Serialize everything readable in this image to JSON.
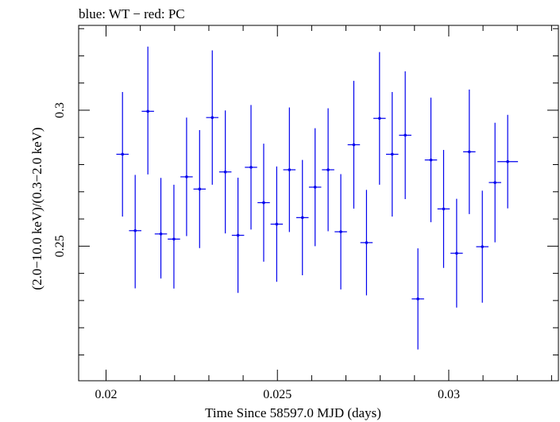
{
  "chart_data": {
    "type": "scatter",
    "title": "blue: WT − red: PC",
    "xlabel": "Time Since 58597.0 MJD (days)",
    "ylabel": "(2.0−10.0 keV)/(0.3−2.0 keV)",
    "xlim": [
      0.0192,
      0.0332
    ],
    "ylim": [
      0.2005,
      0.3312
    ],
    "x_ticks": [
      {
        "value": 0.02,
        "label": "0.02"
      },
      {
        "value": 0.025,
        "label": "0.025"
      },
      {
        "value": 0.03,
        "label": "0.03"
      }
    ],
    "y_ticks": [
      {
        "value": 0.25,
        "label": "0.25"
      },
      {
        "value": 0.3,
        "label": "0.3"
      }
    ],
    "grid": false,
    "series": [
      {
        "name": "WT",
        "color": "#0000ee",
        "points": [
          {
            "x": 0.02048,
            "xerr": 0.00018,
            "y": 0.2838,
            "yerr_lo": 0.0229,
            "yerr_hi": 0.0229
          },
          {
            "x": 0.02085,
            "xerr": 0.00018,
            "y": 0.2557,
            "yerr_lo": 0.0212,
            "yerr_hi": 0.0205
          },
          {
            "x": 0.02122,
            "xerr": 0.00018,
            "y": 0.2996,
            "yerr_lo": 0.0232,
            "yerr_hi": 0.0238
          },
          {
            "x": 0.0216,
            "xerr": 0.00018,
            "y": 0.2545,
            "yerr_lo": 0.0164,
            "yerr_hi": 0.0206
          },
          {
            "x": 0.02198,
            "xerr": 0.00018,
            "y": 0.2526,
            "yerr_lo": 0.0182,
            "yerr_hi": 0.02
          },
          {
            "x": 0.02235,
            "xerr": 0.00018,
            "y": 0.2755,
            "yerr_lo": 0.0218,
            "yerr_hi": 0.0218
          },
          {
            "x": 0.02273,
            "xerr": 0.00018,
            "y": 0.271,
            "yerr_lo": 0.0217,
            "yerr_hi": 0.0217
          },
          {
            "x": 0.0231,
            "xerr": 0.00018,
            "y": 0.2973,
            "yerr_lo": 0.0247,
            "yerr_hi": 0.0247
          },
          {
            "x": 0.02348,
            "xerr": 0.00018,
            "y": 0.2773,
            "yerr_lo": 0.0226,
            "yerr_hi": 0.0226
          },
          {
            "x": 0.02385,
            "xerr": 0.00018,
            "y": 0.254,
            "yerr_lo": 0.0212,
            "yerr_hi": 0.0212
          },
          {
            "x": 0.02423,
            "xerr": 0.00018,
            "y": 0.279,
            "yerr_lo": 0.0229,
            "yerr_hi": 0.0229
          },
          {
            "x": 0.0246,
            "xerr": 0.00018,
            "y": 0.266,
            "yerr_lo": 0.0217,
            "yerr_hi": 0.0217
          },
          {
            "x": 0.02498,
            "xerr": 0.00018,
            "y": 0.2581,
            "yerr_lo": 0.0212,
            "yerr_hi": 0.0212
          },
          {
            "x": 0.02535,
            "xerr": 0.00018,
            "y": 0.2781,
            "yerr_lo": 0.0229,
            "yerr_hi": 0.0229
          },
          {
            "x": 0.02573,
            "xerr": 0.00018,
            "y": 0.2605,
            "yerr_lo": 0.0212,
            "yerr_hi": 0.0212
          },
          {
            "x": 0.0261,
            "xerr": 0.00018,
            "y": 0.2717,
            "yerr_lo": 0.0217,
            "yerr_hi": 0.0217
          },
          {
            "x": 0.02648,
            "xerr": 0.00018,
            "y": 0.2781,
            "yerr_lo": 0.0226,
            "yerr_hi": 0.0226
          },
          {
            "x": 0.02685,
            "xerr": 0.00018,
            "y": 0.2553,
            "yerr_lo": 0.0212,
            "yerr_hi": 0.0212
          },
          {
            "x": 0.02723,
            "xerr": 0.00018,
            "y": 0.2873,
            "yerr_lo": 0.0235,
            "yerr_hi": 0.0235
          },
          {
            "x": 0.0276,
            "xerr": 0.00018,
            "y": 0.2513,
            "yerr_lo": 0.0194,
            "yerr_hi": 0.0194
          },
          {
            "x": 0.02798,
            "xerr": 0.00018,
            "y": 0.297,
            "yerr_lo": 0.0244,
            "yerr_hi": 0.0244
          },
          {
            "x": 0.02835,
            "xerr": 0.00018,
            "y": 0.2838,
            "yerr_lo": 0.0229,
            "yerr_hi": 0.0229
          },
          {
            "x": 0.02873,
            "xerr": 0.00018,
            "y": 0.2908,
            "yerr_lo": 0.0235,
            "yerr_hi": 0.0235
          },
          {
            "x": 0.0291,
            "xerr": 0.00018,
            "y": 0.2306,
            "yerr_lo": 0.0186,
            "yerr_hi": 0.0186
          },
          {
            "x": 0.02948,
            "xerr": 0.00018,
            "y": 0.2817,
            "yerr_lo": 0.0229,
            "yerr_hi": 0.0229
          },
          {
            "x": 0.02985,
            "xerr": 0.00018,
            "y": 0.2637,
            "yerr_lo": 0.0217,
            "yerr_hi": 0.0217
          },
          {
            "x": 0.03023,
            "xerr": 0.00018,
            "y": 0.2474,
            "yerr_lo": 0.02,
            "yerr_hi": 0.02
          },
          {
            "x": 0.0306,
            "xerr": 0.00018,
            "y": 0.2847,
            "yerr_lo": 0.0229,
            "yerr_hi": 0.0229
          },
          {
            "x": 0.03098,
            "xerr": 0.00018,
            "y": 0.2498,
            "yerr_lo": 0.0206,
            "yerr_hi": 0.0206
          },
          {
            "x": 0.03135,
            "xerr": 0.00018,
            "y": 0.2734,
            "yerr_lo": 0.022,
            "yerr_hi": 0.022
          },
          {
            "x": 0.03172,
            "xerr": 0.0003,
            "y": 0.2811,
            "yerr_lo": 0.0172,
            "yerr_hi": 0.0172
          }
        ]
      }
    ]
  }
}
